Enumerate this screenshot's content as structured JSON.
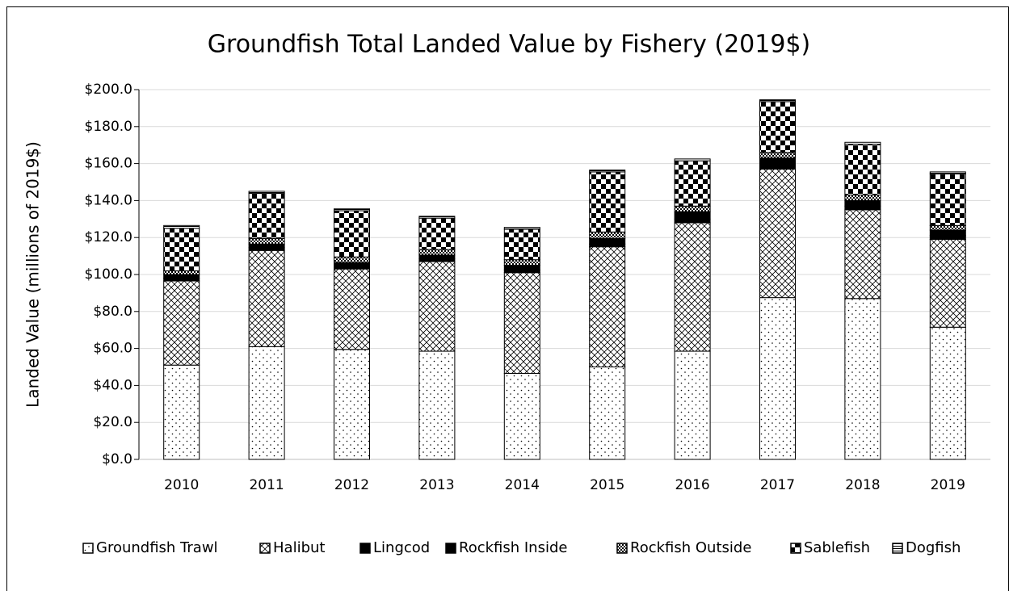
{
  "chart_data": {
    "type": "stacked_bar",
    "title": "Groundfish Total Landed Value by Fishery (2019$)",
    "y_label": "Landed Value (millions of 2019$)",
    "categories": [
      "2010",
      "2011",
      "2012",
      "2013",
      "2014",
      "2015",
      "2016",
      "2017",
      "2018",
      "2019"
    ],
    "series": [
      {
        "name": "Groundfish Trawl",
        "color": "#000000",
        "pattern": "dots",
        "values": [
          51,
          61,
          59.5,
          58.5,
          46.5,
          50,
          58.5,
          87.5,
          87,
          71.5
        ]
      },
      {
        "name": "Halibut",
        "color": "#000000",
        "pattern": "crosshatch",
        "values": [
          45.5,
          52,
          43.5,
          48.5,
          54.5,
          65,
          69.5,
          69.5,
          48,
          47.5
        ]
      },
      {
        "name": "Lingcod",
        "color": "#000000",
        "pattern": "solid",
        "values": [
          1.5,
          1.5,
          1.5,
          1.5,
          1.5,
          1.5,
          2,
          2,
          2,
          2
        ]
      },
      {
        "name": "Rockfish Inside",
        "color": "#000000",
        "pattern": "solid",
        "values": [
          2,
          2,
          2,
          2,
          2.5,
          3,
          4,
          4,
          3,
          3
        ]
      },
      {
        "name": "Rockfish Outside",
        "color": "#000000",
        "pattern": "smallcheck",
        "values": [
          2,
          3,
          3,
          3,
          3,
          3.5,
          3,
          3,
          3,
          2.5
        ]
      },
      {
        "name": "Sablefish",
        "color": "#000000",
        "pattern": "bigcheck",
        "values": [
          23,
          24.5,
          25,
          17,
          16.5,
          32.5,
          24.5,
          27.5,
          27.5,
          28
        ]
      },
      {
        "name": "Dogfish",
        "color": "#000000",
        "pattern": "hlines",
        "values": [
          1.5,
          1,
          1,
          1,
          1,
          1,
          1,
          1,
          1,
          1
        ]
      }
    ],
    "ylim": [
      0,
      200
    ],
    "yticks": [
      {
        "value": 0,
        "label": "$0.0"
      },
      {
        "value": 20,
        "label": "$20.0"
      },
      {
        "value": 40,
        "label": "$40.0"
      },
      {
        "value": 60,
        "label": "$60.0"
      },
      {
        "value": 80,
        "label": "$80.0"
      },
      {
        "value": 100,
        "label": "$100.0"
      },
      {
        "value": 120,
        "label": "$120.0"
      },
      {
        "value": 140,
        "label": "$140.0"
      },
      {
        "value": 160,
        "label": "$160.0"
      },
      {
        "value": 180,
        "label": "$180.0"
      },
      {
        "value": 200,
        "label": "$200.0"
      }
    ],
    "grid": true,
    "legend": "bottom"
  }
}
